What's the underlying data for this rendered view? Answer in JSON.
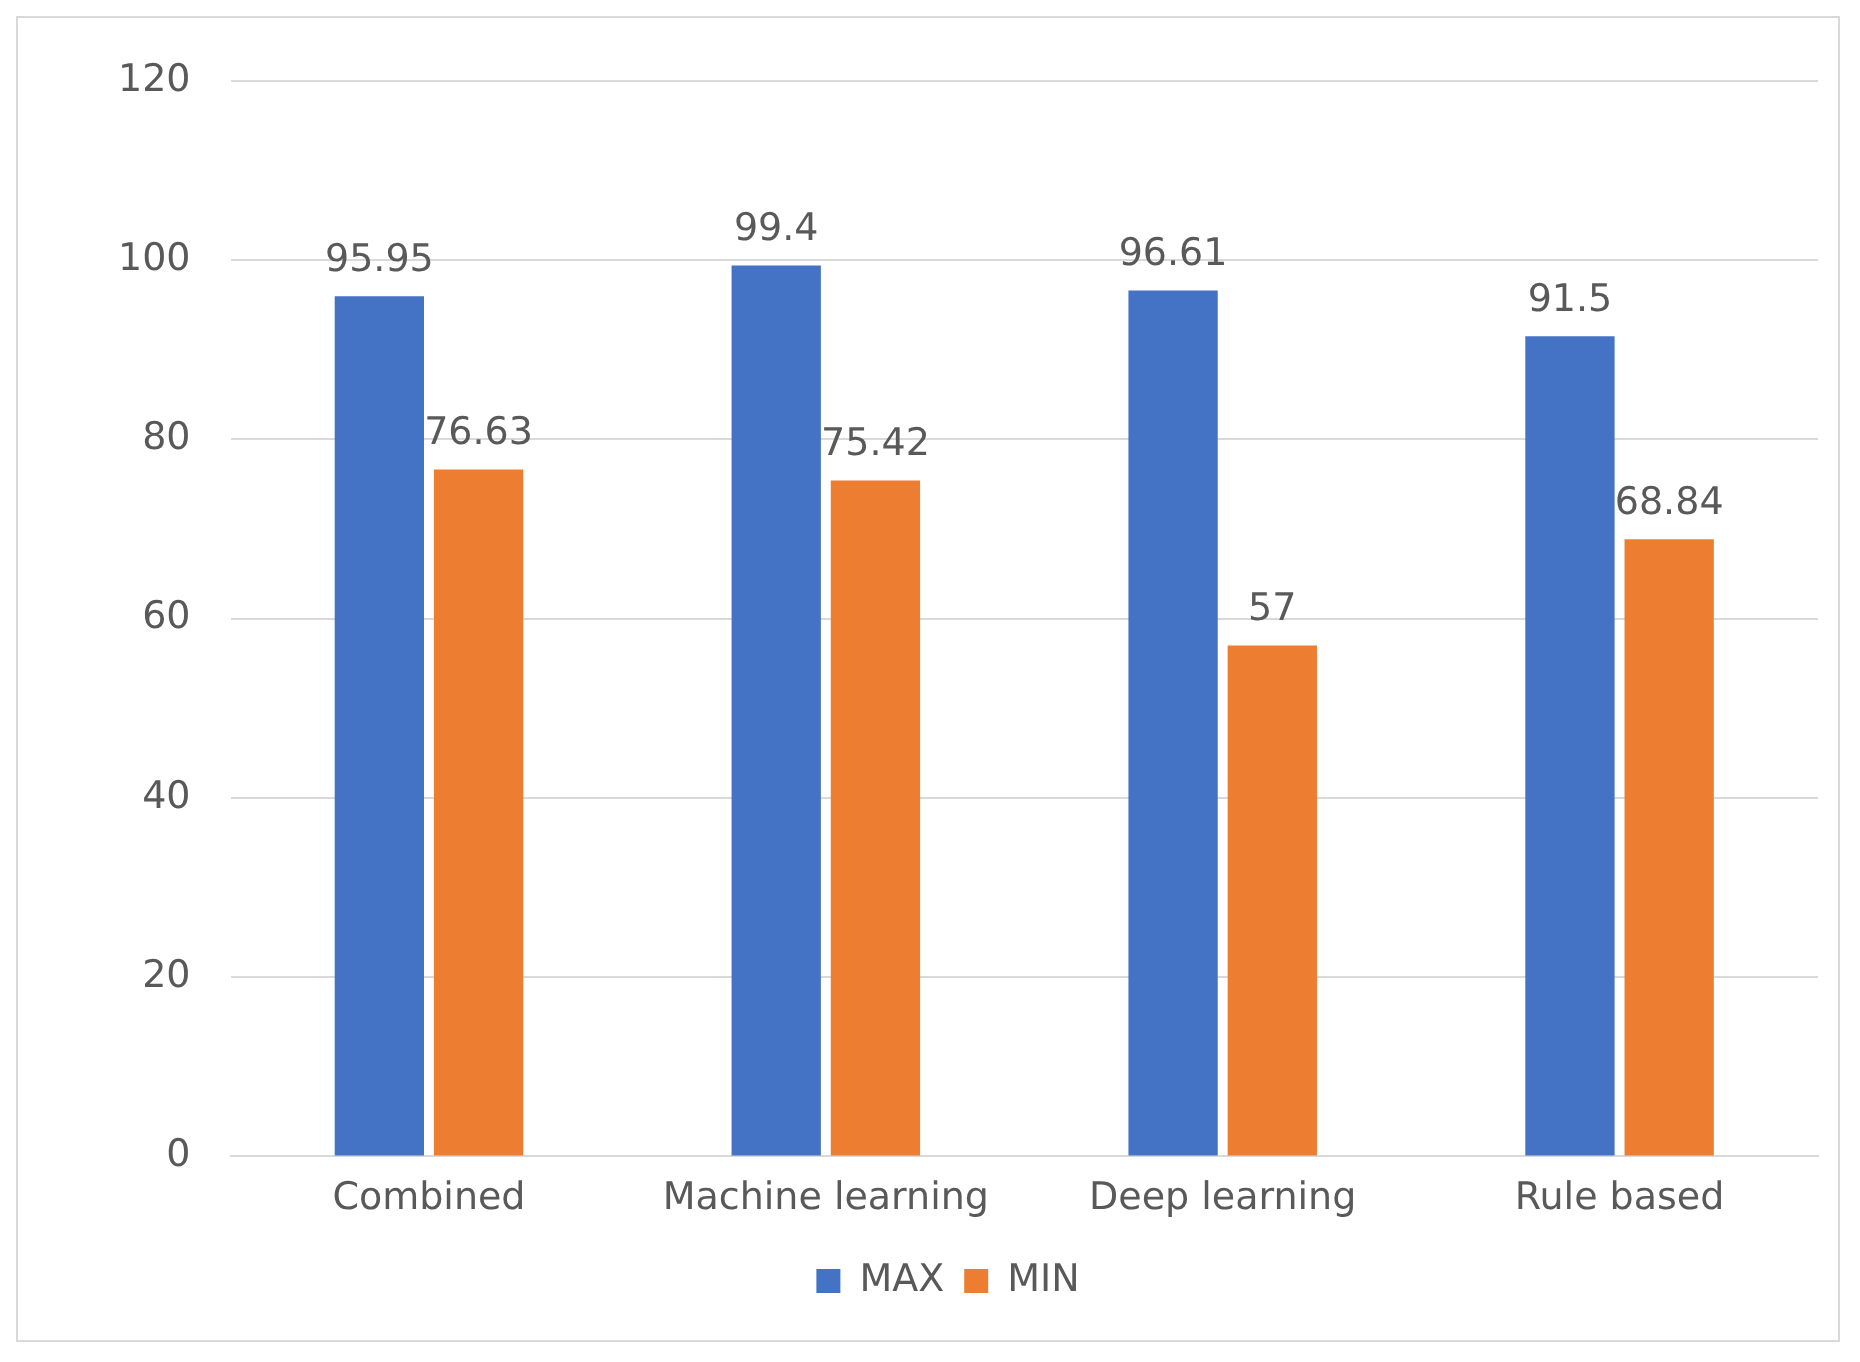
{
  "chart_data": {
    "type": "bar",
    "categories": [
      "Combined",
      "Machine learning",
      "Deep learning",
      "Rule based"
    ],
    "series": [
      {
        "name": "MAX",
        "color": "#4472c4",
        "values": [
          95.95,
          99.4,
          96.61,
          91.5
        ]
      },
      {
        "name": "MIN",
        "color": "#ed7d31",
        "values": [
          76.63,
          75.42,
          57,
          68.84
        ]
      }
    ],
    "ylim": [
      0,
      120
    ],
    "yticks": [
      0,
      20,
      40,
      60,
      80,
      100,
      120
    ],
    "grid": "y",
    "legend": "bottom",
    "data_labels": true
  }
}
